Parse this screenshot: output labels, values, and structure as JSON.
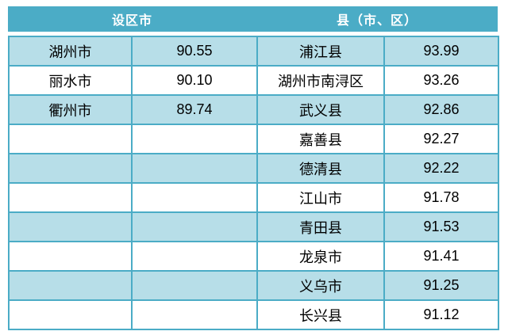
{
  "table": {
    "header": {
      "city_group_label": "设区市",
      "county_group_label": "县（市、区）"
    },
    "colors": {
      "header_bg": "#4BACC6",
      "header_text": "#ffffff",
      "alt_row_bg": "#B7DEE8",
      "row_bg": "#ffffff",
      "border": "#4BACC6",
      "body_text": "#000000"
    },
    "rows": [
      {
        "city": "湖州市",
        "city_value": "90.55",
        "county": "浦江县",
        "county_value": "93.99"
      },
      {
        "city": "丽水市",
        "city_value": "90.10",
        "county": "湖州市南浔区",
        "county_value": "93.26"
      },
      {
        "city": "衢州市",
        "city_value": "89.74",
        "county": "武义县",
        "county_value": "92.86"
      },
      {
        "city": "",
        "city_value": "",
        "county": "嘉善县",
        "county_value": "92.27"
      },
      {
        "city": "",
        "city_value": "",
        "county": "德清县",
        "county_value": "92.22"
      },
      {
        "city": "",
        "city_value": "",
        "county": "江山市",
        "county_value": "91.78"
      },
      {
        "city": "",
        "city_value": "",
        "county": "青田县",
        "county_value": "91.53"
      },
      {
        "city": "",
        "city_value": "",
        "county": "龙泉市",
        "county_value": "91.41"
      },
      {
        "city": "",
        "city_value": "",
        "county": "义乌市",
        "county_value": "91.25"
      },
      {
        "city": "",
        "city_value": "",
        "county": "长兴县",
        "county_value": "91.12"
      }
    ]
  }
}
